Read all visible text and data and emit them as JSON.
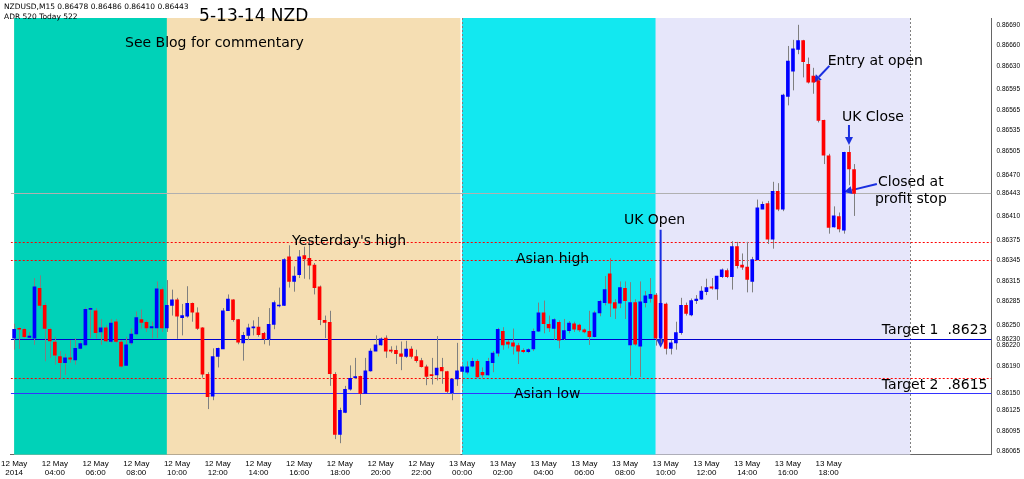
{
  "chart_data": {
    "type": "candlestick",
    "title": "5-13-14 NZD",
    "x": [
      "2014-05-12T02:00",
      "2014-05-12T02:15",
      "2014-05-12T02:30",
      "2014-05-12T02:45",
      "2014-05-12T03:00",
      "2014-05-12T03:15",
      "2014-05-12T03:30",
      "2014-05-12T03:45",
      "2014-05-12T04:00",
      "2014-05-12T04:15",
      "2014-05-12T04:30",
      "2014-05-12T04:45",
      "2014-05-12T05:00",
      "2014-05-12T05:15",
      "2014-05-12T05:30",
      "2014-05-12T05:45",
      "2014-05-12T06:00",
      "2014-05-12T06:15",
      "2014-05-12T06:30",
      "2014-05-12T06:45",
      "2014-05-12T07:00",
      "2014-05-12T07:15",
      "2014-05-12T07:30",
      "2014-05-12T07:45",
      "2014-05-12T08:00",
      "2014-05-12T08:15",
      "2014-05-12T08:30",
      "2014-05-12T08:45",
      "2014-05-12T09:00",
      "2014-05-12T09:15",
      "2014-05-12T09:30",
      "2014-05-12T09:45",
      "2014-05-12T10:00",
      "2014-05-12T10:15",
      "2014-05-12T10:30",
      "2014-05-12T10:45",
      "2014-05-12T11:00",
      "2014-05-12T11:15",
      "2014-05-12T11:30",
      "2014-05-12T11:45",
      "2014-05-12T12:00",
      "2014-05-12T12:15",
      "2014-05-12T12:30",
      "2014-05-12T12:45",
      "2014-05-12T13:00",
      "2014-05-12T13:15",
      "2014-05-12T13:30",
      "2014-05-12T13:45",
      "2014-05-12T14:00",
      "2014-05-12T14:15",
      "2014-05-12T14:30",
      "2014-05-12T14:45",
      "2014-05-12T15:00",
      "2014-05-12T15:15",
      "2014-05-12T15:30",
      "2014-05-12T15:45",
      "2014-05-12T16:00",
      "2014-05-12T16:15",
      "2014-05-12T16:30",
      "2014-05-12T16:45",
      "2014-05-12T17:00",
      "2014-05-12T17:15",
      "2014-05-12T17:30",
      "2014-05-12T17:45",
      "2014-05-12T18:00",
      "2014-05-12T18:15",
      "2014-05-12T18:30",
      "2014-05-12T18:45",
      "2014-05-12T19:00",
      "2014-05-12T19:15",
      "2014-05-12T19:30",
      "2014-05-12T19:45",
      "2014-05-12T20:00",
      "2014-05-12T20:15",
      "2014-05-12T20:30",
      "2014-05-12T20:45",
      "2014-05-12T21:00",
      "2014-05-12T21:15",
      "2014-05-12T21:30",
      "2014-05-12T21:45",
      "2014-05-12T22:00",
      "2014-05-12T22:15",
      "2014-05-12T22:30",
      "2014-05-12T22:45",
      "2014-05-12T23:00",
      "2014-05-12T23:15",
      "2014-05-12T23:30",
      "2014-05-12T23:45",
      "2014-05-13T00:00",
      "2014-05-13T00:15",
      "2014-05-13T00:30",
      "2014-05-13T00:45",
      "2014-05-13T01:00",
      "2014-05-13T01:15",
      "2014-05-13T01:30",
      "2014-05-13T01:45",
      "2014-05-13T02:00",
      "2014-05-13T02:15",
      "2014-05-13T02:30",
      "2014-05-13T02:45",
      "2014-05-13T03:00",
      "2014-05-13T03:15",
      "2014-05-13T03:30",
      "2014-05-13T03:45",
      "2014-05-13T04:00",
      "2014-05-13T04:15",
      "2014-05-13T04:30",
      "2014-05-13T04:45",
      "2014-05-13T05:00",
      "2014-05-13T05:15",
      "2014-05-13T05:30",
      "2014-05-13T05:45",
      "2014-05-13T06:00",
      "2014-05-13T06:15",
      "2014-05-13T06:30",
      "2014-05-13T06:45",
      "2014-05-13T07:00",
      "2014-05-13T07:15",
      "2014-05-13T07:30",
      "2014-05-13T07:45",
      "2014-05-13T08:00",
      "2014-05-13T08:15",
      "2014-05-13T08:30",
      "2014-05-13T08:45",
      "2014-05-13T09:00",
      "2014-05-13T09:15",
      "2014-05-13T09:30",
      "2014-05-13T09:45",
      "2014-05-13T10:00",
      "2014-05-13T10:15",
      "2014-05-13T10:30",
      "2014-05-13T10:45",
      "2014-05-13T11:00",
      "2014-05-13T11:15",
      "2014-05-13T11:30",
      "2014-05-13T11:45",
      "2014-05-13T12:00",
      "2014-05-13T12:15",
      "2014-05-13T12:30",
      "2014-05-13T12:45",
      "2014-05-13T13:00",
      "2014-05-13T13:15",
      "2014-05-13T13:30",
      "2014-05-13T13:45",
      "2014-05-13T14:00",
      "2014-05-13T14:15",
      "2014-05-13T14:30",
      "2014-05-13T14:45",
      "2014-05-13T15:00",
      "2014-05-13T15:15",
      "2014-05-13T15:30",
      "2014-05-13T15:45",
      "2014-05-13T16:00",
      "2014-05-13T16:15",
      "2014-05-13T16:30",
      "2014-05-13T16:45",
      "2014-05-13T17:00",
      "2014-05-13T17:15",
      "2014-05-13T17:30",
      "2014-05-13T17:45",
      "2014-05-13T18:00",
      "2014-05-13T18:15",
      "2014-05-13T18:30",
      "2014-05-13T18:45",
      "2014-05-13T19:00",
      "2014-05-13T19:15"
    ],
    "ohlc": [
      [
        0.86231,
        0.86252,
        0.86214,
        0.86244
      ],
      [
        0.86245,
        0.86247,
        0.86215,
        0.86244
      ],
      [
        0.86244,
        0.86246,
        0.86231,
        0.86233
      ],
      [
        0.86232,
        0.8624,
        0.86231,
        0.86234
      ],
      [
        0.86231,
        0.86319,
        0.86221,
        0.86306
      ],
      [
        0.86304,
        0.86323,
        0.86274,
        0.86279
      ],
      [
        0.86279,
        0.86283,
        0.86197,
        0.86245
      ],
      [
        0.86244,
        0.86246,
        0.86202,
        0.86227
      ],
      [
        0.86225,
        0.86233,
        0.86192,
        0.86206
      ],
      [
        0.86204,
        0.86212,
        0.86172,
        0.86195
      ],
      [
        0.86195,
        0.86208,
        0.86177,
        0.86202
      ],
      [
        0.86202,
        0.86228,
        0.86195,
        0.862
      ],
      [
        0.86199,
        0.86231,
        0.86192,
        0.86216
      ],
      [
        0.86216,
        0.86226,
        0.86214,
        0.86223
      ],
      [
        0.86221,
        0.86276,
        0.86219,
        0.86273
      ],
      [
        0.86273,
        0.86276,
        0.86231,
        0.86274
      ],
      [
        0.86271,
        0.86275,
        0.8623,
        0.86239
      ],
      [
        0.8624,
        0.86259,
        0.86221,
        0.86246
      ],
      [
        0.86246,
        0.8625,
        0.86225,
        0.86227
      ],
      [
        0.86226,
        0.86259,
        0.86224,
        0.86253
      ],
      [
        0.86255,
        0.86259,
        0.86224,
        0.86226
      ],
      [
        0.86225,
        0.86228,
        0.86188,
        0.8619
      ],
      [
        0.86191,
        0.86233,
        0.8619,
        0.86221
      ],
      [
        0.86224,
        0.86245,
        0.86221,
        0.86237
      ],
      [
        0.86237,
        0.8627,
        0.86235,
        0.86261
      ],
      [
        0.86258,
        0.86273,
        0.86245,
        0.86254
      ],
      [
        0.86254,
        0.86257,
        0.8624,
        0.86246
      ],
      [
        0.86246,
        0.86255,
        0.86231,
        0.86248
      ],
      [
        0.86246,
        0.86314,
        0.86231,
        0.86303
      ],
      [
        0.86302,
        0.86305,
        0.8624,
        0.86246
      ],
      [
        0.86246,
        0.86316,
        0.8624,
        0.86279
      ],
      [
        0.86279,
        0.86302,
        0.86264,
        0.86287
      ],
      [
        0.86287,
        0.8629,
        0.8623,
        0.86263
      ],
      [
        0.86261,
        0.86281,
        0.86235,
        0.86264
      ],
      [
        0.86263,
        0.86307,
        0.86261,
        0.86282
      ],
      [
        0.86282,
        0.86283,
        0.86255,
        0.86269
      ],
      [
        0.86268,
        0.86276,
        0.86243,
        0.86245
      ],
      [
        0.86246,
        0.86247,
        0.86173,
        0.86178
      ],
      [
        0.86178,
        0.86181,
        0.86127,
        0.86145
      ],
      [
        0.86146,
        0.86216,
        0.8614,
        0.86204
      ],
      [
        0.86204,
        0.86217,
        0.86188,
        0.86216
      ],
      [
        0.86215,
        0.86275,
        0.86215,
        0.86271
      ],
      [
        0.86271,
        0.86295,
        0.86271,
        0.86288
      ],
      [
        0.86287,
        0.86288,
        0.86255,
        0.86258
      ],
      [
        0.86258,
        0.86259,
        0.86222,
        0.86225
      ],
      [
        0.86224,
        0.8624,
        0.86198,
        0.86235
      ],
      [
        0.86235,
        0.86252,
        0.86228,
        0.86246
      ],
      [
        0.86246,
        0.86257,
        0.86235,
        0.86247
      ],
      [
        0.86247,
        0.86262,
        0.86233,
        0.86236
      ],
      [
        0.86238,
        0.8624,
        0.86222,
        0.8623
      ],
      [
        0.8623,
        0.86275,
        0.8622,
        0.86251
      ],
      [
        0.86251,
        0.86286,
        0.86244,
        0.86283
      ],
      [
        0.86278,
        0.86305,
        0.86276,
        0.86279
      ],
      [
        0.86279,
        0.86348,
        0.86278,
        0.86346
      ],
      [
        0.8635,
        0.86367,
        0.86305,
        0.86314
      ],
      [
        0.86314,
        0.86336,
        0.86299,
        0.86322
      ],
      [
        0.86324,
        0.8636,
        0.86319,
        0.8635
      ],
      [
        0.86352,
        0.86365,
        0.86318,
        0.86347
      ],
      [
        0.86348,
        0.86373,
        0.86317,
        0.86338
      ],
      [
        0.86338,
        0.86341,
        0.86295,
        0.86305
      ],
      [
        0.86306,
        0.86308,
        0.8625,
        0.86258
      ],
      [
        0.86257,
        0.86264,
        0.86231,
        0.86254
      ],
      [
        0.86254,
        0.86271,
        0.86161,
        0.86179
      ],
      [
        0.86178,
        0.86181,
        0.86083,
        0.8609
      ],
      [
        0.8609,
        0.86129,
        0.86077,
        0.86125
      ],
      [
        0.86122,
        0.86161,
        0.86121,
        0.86156
      ],
      [
        0.86156,
        0.86191,
        0.86154,
        0.86172
      ],
      [
        0.86173,
        0.86202,
        0.86171,
        0.86174
      ],
      [
        0.86175,
        0.86176,
        0.86133,
        0.8615
      ],
      [
        0.8615,
        0.86202,
        0.86149,
        0.86183
      ],
      [
        0.86183,
        0.86216,
        0.86182,
        0.86212
      ],
      [
        0.86212,
        0.86235,
        0.86212,
        0.86221
      ],
      [
        0.86221,
        0.86232,
        0.8622,
        0.8623
      ],
      [
        0.86231,
        0.86235,
        0.86202,
        0.86212
      ],
      [
        0.86213,
        0.86219,
        0.86209,
        0.86212
      ],
      [
        0.86213,
        0.8622,
        0.86193,
        0.86208
      ],
      [
        0.86208,
        0.86226,
        0.86184,
        0.86204
      ],
      [
        0.86204,
        0.86227,
        0.86202,
        0.86215
      ],
      [
        0.86215,
        0.86219,
        0.86201,
        0.86204
      ],
      [
        0.86204,
        0.86214,
        0.86195,
        0.86198
      ],
      [
        0.86198,
        0.86202,
        0.86188,
        0.86189
      ],
      [
        0.86189,
        0.86192,
        0.86162,
        0.86175
      ],
      [
        0.86177,
        0.86202,
        0.86163,
        0.86176
      ],
      [
        0.86177,
        0.86234,
        0.86169,
        0.86187
      ],
      [
        0.86188,
        0.86202,
        0.86164,
        0.86183
      ],
      [
        0.86182,
        0.86183,
        0.8615,
        0.86153
      ],
      [
        0.86151,
        0.86172,
        0.8614,
        0.86171
      ],
      [
        0.86171,
        0.86224,
        0.86161,
        0.86183
      ],
      [
        0.86182,
        0.86192,
        0.86164,
        0.86189
      ],
      [
        0.86181,
        0.86197,
        0.86178,
        0.86189
      ],
      [
        0.8619,
        0.86202,
        0.86188,
        0.86197
      ],
      [
        0.86197,
        0.862,
        0.86173,
        0.86174
      ],
      [
        0.86181,
        0.86188,
        0.86173,
        0.86177
      ],
      [
        0.86177,
        0.86202,
        0.86176,
        0.86197
      ],
      [
        0.86195,
        0.86212,
        0.86181,
        0.86209
      ],
      [
        0.86209,
        0.86246,
        0.86204,
        0.86244
      ],
      [
        0.86241,
        0.86247,
        0.86214,
        0.86221
      ],
      [
        0.86225,
        0.86228,
        0.86216,
        0.86222
      ],
      [
        0.86224,
        0.86245,
        0.86207,
        0.86219
      ],
      [
        0.8622,
        0.86224,
        0.86193,
        0.86212
      ],
      [
        0.86213,
        0.86216,
        0.86209,
        0.86211
      ],
      [
        0.86211,
        0.86216,
        0.86209,
        0.86214
      ],
      [
        0.86215,
        0.86245,
        0.86212,
        0.86241
      ],
      [
        0.86241,
        0.86283,
        0.8624,
        0.86268
      ],
      [
        0.86268,
        0.86286,
        0.86238,
        0.86252
      ],
      [
        0.86251,
        0.86264,
        0.8624,
        0.86246
      ],
      [
        0.86245,
        0.8626,
        0.86228,
        0.86258
      ],
      [
        0.86254,
        0.86257,
        0.86216,
        0.86228
      ],
      [
        0.8623,
        0.86259,
        0.86228,
        0.86242
      ],
      [
        0.86242,
        0.86256,
        0.86238,
        0.86253
      ],
      [
        0.86252,
        0.86255,
        0.8624,
        0.86244
      ],
      [
        0.8625,
        0.86252,
        0.8624,
        0.86243
      ],
      [
        0.86243,
        0.86245,
        0.86238,
        0.8624
      ],
      [
        0.86241,
        0.86271,
        0.86221,
        0.86233
      ],
      [
        0.86233,
        0.86271,
        0.86232,
        0.86268
      ],
      [
        0.86268,
        0.86287,
        0.86263,
        0.86285
      ],
      [
        0.86283,
        0.86322,
        0.86279,
        0.86302
      ],
      [
        0.86325,
        0.86348,
        0.86262,
        0.86282
      ],
      [
        0.86283,
        0.86288,
        0.86259,
        0.86275
      ],
      [
        0.86282,
        0.86314,
        0.86275,
        0.86305
      ],
      [
        0.86304,
        0.86314,
        0.86259,
        0.86286
      ],
      [
        0.86221,
        0.86313,
        0.86176,
        0.86283
      ],
      [
        0.86283,
        0.86288,
        0.8622,
        0.86222
      ],
      [
        0.86219,
        0.86314,
        0.86174,
        0.86284
      ],
      [
        0.86283,
        0.863,
        0.86276,
        0.86293
      ],
      [
        0.86289,
        0.86319,
        0.86283,
        0.86295
      ],
      [
        0.86294,
        0.86297,
        0.8622,
        0.86231
      ],
      [
        0.86231,
        0.86283,
        0.86224,
        0.86282
      ],
      [
        0.86281,
        0.86283,
        0.86207,
        0.86216
      ],
      [
        0.86216,
        0.86228,
        0.86207,
        0.86224
      ],
      [
        0.86224,
        0.86255,
        0.86214,
        0.86239
      ],
      [
        0.86239,
        0.8629,
        0.86236,
        0.86279
      ],
      [
        0.86279,
        0.86283,
        0.86264,
        0.86267
      ],
      [
        0.86265,
        0.86289,
        0.86263,
        0.86286
      ],
      [
        0.86286,
        0.86294,
        0.86281,
        0.86288
      ],
      [
        0.86288,
        0.86307,
        0.86287,
        0.863
      ],
      [
        0.86299,
        0.86318,
        0.86294,
        0.86305
      ],
      [
        0.86306,
        0.86319,
        0.86302,
        0.86304
      ],
      [
        0.86303,
        0.86322,
        0.86287,
        0.86322
      ],
      [
        0.86321,
        0.86333,
        0.86319,
        0.86331
      ],
      [
        0.8633,
        0.86333,
        0.86319,
        0.86321
      ],
      [
        0.86321,
        0.86373,
        0.86302,
        0.86365
      ],
      [
        0.86365,
        0.86372,
        0.86333,
        0.86337
      ],
      [
        0.86338,
        0.86355,
        0.86331,
        0.86335
      ],
      [
        0.86335,
        0.86372,
        0.86298,
        0.86317
      ],
      [
        0.86314,
        0.8635,
        0.86298,
        0.86346
      ],
      [
        0.86346,
        0.86434,
        0.86345,
        0.86422
      ],
      [
        0.8642,
        0.86431,
        0.8642,
        0.86427
      ],
      [
        0.86428,
        0.86432,
        0.86369,
        0.86376
      ],
      [
        0.86376,
        0.8646,
        0.86362,
        0.86446
      ],
      [
        0.86446,
        0.86458,
        0.86417,
        0.8642
      ],
      [
        0.8642,
        0.86589,
        0.86417,
        0.86587
      ],
      [
        0.86585,
        0.86659,
        0.86572,
        0.86637
      ],
      [
        0.86622,
        0.86668,
        0.86594,
        0.86655
      ],
      [
        0.86654,
        0.8669,
        0.86647,
        0.86667
      ],
      [
        0.86667,
        0.86668,
        0.86613,
        0.86636
      ],
      [
        0.86632,
        0.86642,
        0.86604,
        0.86606
      ],
      [
        0.86615,
        0.86627,
        0.86589,
        0.86606
      ],
      [
        0.86608,
        0.86611,
        0.86547,
        0.8655
      ],
      [
        0.8655,
        0.86551,
        0.86486,
        0.86499
      ],
      [
        0.86498,
        0.86501,
        0.86384,
        0.86393
      ],
      [
        0.86394,
        0.86424,
        0.86393,
        0.8641
      ],
      [
        0.86409,
        0.86415,
        0.86386,
        0.86391
      ],
      [
        0.86389,
        0.86504,
        0.86384,
        0.86503
      ],
      [
        0.86503,
        0.86513,
        0.86455,
        0.86479
      ],
      [
        0.86478,
        0.86486,
        0.8641,
        0.86443
      ]
    ],
    "xlim": [
      "2014-05-12T01:50",
      "2014-05-14T02:00"
    ],
    "xticks": [
      {
        "value": "2014-05-12T02:00",
        "label": "12 May 2014"
      },
      {
        "value": "2014-05-12T04:00",
        "label": "12 May 04:00"
      },
      {
        "value": "2014-05-12T06:00",
        "label": "12 May 06:00"
      },
      {
        "value": "2014-05-12T08:00",
        "label": "12 May 08:00"
      },
      {
        "value": "2014-05-12T10:00",
        "label": "12 May 10:00"
      },
      {
        "value": "2014-05-12T12:00",
        "label": "12 May 12:00"
      },
      {
        "value": "2014-05-12T14:00",
        "label": "12 May 14:00"
      },
      {
        "value": "2014-05-12T16:00",
        "label": "12 May 16:00"
      },
      {
        "value": "2014-05-12T18:00",
        "label": "12 May 18:00"
      },
      {
        "value": "2014-05-12T20:00",
        "label": "12 May 20:00"
      },
      {
        "value": "2014-05-12T22:00",
        "label": "12 May 22:00"
      },
      {
        "value": "2014-05-13T00:00",
        "label": "13 May 00:00"
      },
      {
        "value": "2014-05-13T02:00",
        "label": "13 May 02:00"
      },
      {
        "value": "2014-05-13T04:00",
        "label": "13 May 04:00"
      },
      {
        "value": "2014-05-13T06:00",
        "label": "13 May 06:00"
      },
      {
        "value": "2014-05-13T08:00",
        "label": "13 May 08:00"
      },
      {
        "value": "2014-05-13T10:00",
        "label": "13 May 10:00"
      },
      {
        "value": "2014-05-13T12:00",
        "label": "13 May 12:00"
      },
      {
        "value": "2014-05-13T14:00",
        "label": "13 May 14:00"
      },
      {
        "value": "2014-05-13T16:00",
        "label": "13 May 16:00"
      },
      {
        "value": "2014-05-13T18:00",
        "label": "13 May 18:00"
      }
    ],
    "ylim": [
      0.8606,
      0.867
    ],
    "yticks": [
      {
        "value": 0.8669,
        "label": "0.86690"
      },
      {
        "value": 0.8666,
        "label": "0.86660"
      },
      {
        "value": 0.8663,
        "label": "0.86630"
      },
      {
        "value": 0.86595,
        "label": "0.86595"
      },
      {
        "value": 0.86565,
        "label": "0.86565"
      },
      {
        "value": 0.86535,
        "label": "0.86535"
      },
      {
        "value": 0.86505,
        "label": "0.86505"
      },
      {
        "value": 0.8647,
        "label": "0.86470"
      },
      {
        "value": 0.86443,
        "label": "0.86443"
      },
      {
        "value": 0.8641,
        "label": "0.86410"
      },
      {
        "value": 0.86375,
        "label": "0.86375"
      },
      {
        "value": 0.86345,
        "label": "0.86345"
      },
      {
        "value": 0.86315,
        "label": "0.86315"
      },
      {
        "value": 0.86285,
        "label": "0.86285"
      },
      {
        "value": 0.8625,
        "label": "0.86250"
      },
      {
        "value": 0.8623,
        "label": "0.86230"
      },
      {
        "value": 0.8622,
        "label": "0.86220"
      },
      {
        "value": 0.8619,
        "label": "0.86190"
      },
      {
        "value": 0.8615,
        "label": "0.86150"
      },
      {
        "value": 0.86125,
        "label": "0.86125"
      },
      {
        "value": 0.86095,
        "label": "0.86095"
      },
      {
        "value": 0.86065,
        "label": "0.86065"
      }
    ],
    "bands": [
      {
        "axis": "x",
        "from": "2014-05-12T02:00",
        "to": "2014-05-12T23:55",
        "color": "#f5deb3"
      },
      {
        "axis": "x",
        "from": "2014-05-13T00:00",
        "to": "2014-05-13T22:00",
        "color": "#e6e6fa"
      },
      {
        "axis": "x",
        "from": "2014-05-12T02:00",
        "to": "2014-05-12T09:30",
        "color": "#00d2b8"
      },
      {
        "axis": "x",
        "from": "2014-05-13T00:00",
        "to": "2014-05-13T09:30",
        "color": "#12e8f0"
      }
    ],
    "ref_lines": [
      {
        "axis": "x",
        "value": "2014-05-13T00:00",
        "color": "#808080",
        "line_style": "dotted"
      },
      {
        "axis": "x",
        "value": "2014-05-13T22:00",
        "color": "#808080",
        "line_style": "dotted"
      },
      {
        "axis": "y",
        "value": 0.86443,
        "color": "#b0b0b0",
        "line_style": "solid"
      },
      {
        "axis": "y",
        "value": 0.86372,
        "color": "#ff0000",
        "line_style": "dotted"
      },
      {
        "axis": "y",
        "value": 0.86346,
        "color": "#ff0000",
        "line_style": "dotted"
      },
      {
        "axis": "y",
        "value": 0.86172,
        "color": "#ff0000",
        "line_style": "dotted"
      },
      {
        "axis": "y",
        "value": 0.8623,
        "label": "Target 1  .8623",
        "color": "#0000cc",
        "line_style": "solid"
      },
      {
        "axis": "y",
        "value": 0.8615,
        "label": "Target 2  .8615",
        "color": "#3333ff",
        "line_style": "solid"
      }
    ],
    "annotations": [
      "NZDUSD,M15  0.86478 0.86486 0.86410 0.86443",
      "ADR 520  Today 522",
      "See Blog for commentary",
      "Yesterday's high",
      "Asian high",
      "Asian low",
      {
        "text": "UK Open",
        "x": "2014-05-13T09:45",
        "y": 0.86217
      },
      {
        "text": "Entry at open",
        "x": "2014-05-13T17:15",
        "y": 0.86605
      },
      {
        "text": "UK Close",
        "x": "2014-05-13T19:00",
        "y": 0.86514
      },
      {
        "text": "Closed at profit stop",
        "x": "2014-05-13T18:45",
        "y": 0.86445
      }
    ]
  }
}
